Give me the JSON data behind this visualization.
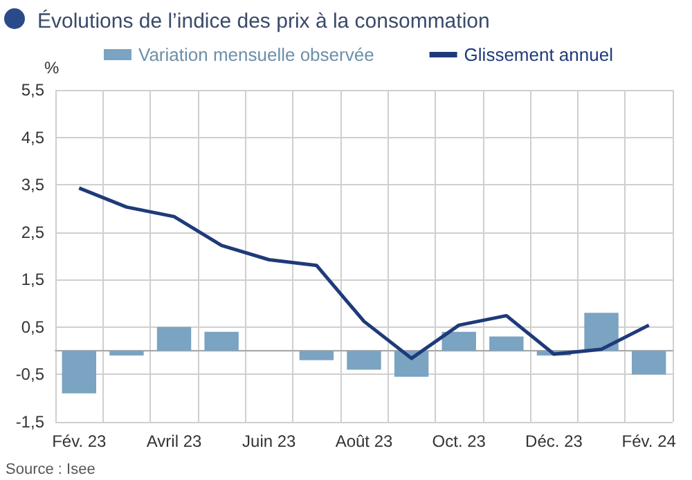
{
  "chart_data": {
    "type": "bar",
    "title": "Évolutions de l’indice des prix à la consommation",
    "ylabel": "%",
    "categories": [
      "Fév. 23",
      null,
      "Avril 23",
      null,
      "Juin 23",
      null,
      "Août 23",
      null,
      "Oct. 23",
      null,
      "Déc. 23",
      null,
      "Fév. 24"
    ],
    "series": [
      {
        "name": "Variation mensuelle observée",
        "color": "#7ba3c2",
        "values": [
          -0.9,
          -0.1,
          0.5,
          0.4,
          0.0,
          -0.2,
          -0.4,
          -0.55,
          0.4,
          0.3,
          -0.1,
          0.8,
          -0.5
        ]
      },
      {
        "name": "Glissement annuel",
        "type": "line",
        "color": "#1f3a7a",
        "values": [
          3.43,
          3.03,
          2.83,
          2.22,
          1.92,
          1.8,
          0.62,
          -0.16,
          0.54,
          0.74,
          -0.07,
          0.03,
          0.54
        ]
      }
    ],
    "ylim": [
      -1.5,
      5.5
    ],
    "yticks": [
      {
        "value": -1.5,
        "label": "-1,5"
      },
      {
        "value": -0.5,
        "label": "-0,5"
      },
      {
        "value": 0.5,
        "label": "0,5"
      },
      {
        "value": 1.5,
        "label": "1,5"
      },
      {
        "value": 2.5,
        "label": "2,5"
      },
      {
        "value": 3.5,
        "label": "3,5"
      },
      {
        "value": 4.5,
        "label": "4,5"
      },
      {
        "value": 5.5,
        "label": "5,5"
      }
    ],
    "grid": true,
    "legend": "top",
    "marker": "none",
    "annotations": [
      "Source : Isee"
    ]
  }
}
